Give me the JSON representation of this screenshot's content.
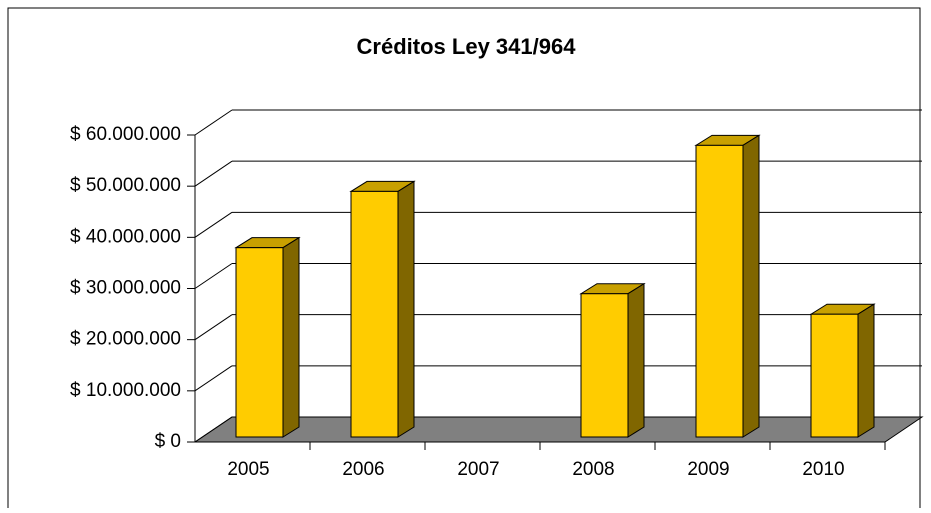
{
  "chart_data": {
    "type": "bar3d",
    "title": "Créditos Ley 341/964",
    "categories": [
      "2005",
      "2006",
      "2007",
      "2008",
      "2009",
      "2010"
    ],
    "values": [
      37000000,
      48000000,
      0,
      28000000,
      57000000,
      24000000
    ],
    "color": "#ffcc00",
    "ylim": [
      0,
      60000000
    ],
    "yticks": [
      {
        "value": 0,
        "label": "$ 0"
      },
      {
        "value": 10000000,
        "label": "$ 10.000.000"
      },
      {
        "value": 20000000,
        "label": "$ 20.000.000"
      },
      {
        "value": 30000000,
        "label": "$ 30.000.000"
      },
      {
        "value": 40000000,
        "label": "$ 40.000.000"
      },
      {
        "value": 50000000,
        "label": "$ 50.000.000"
      },
      {
        "value": 60000000,
        "label": "$ 60.000.000"
      }
    ],
    "grid": true
  }
}
